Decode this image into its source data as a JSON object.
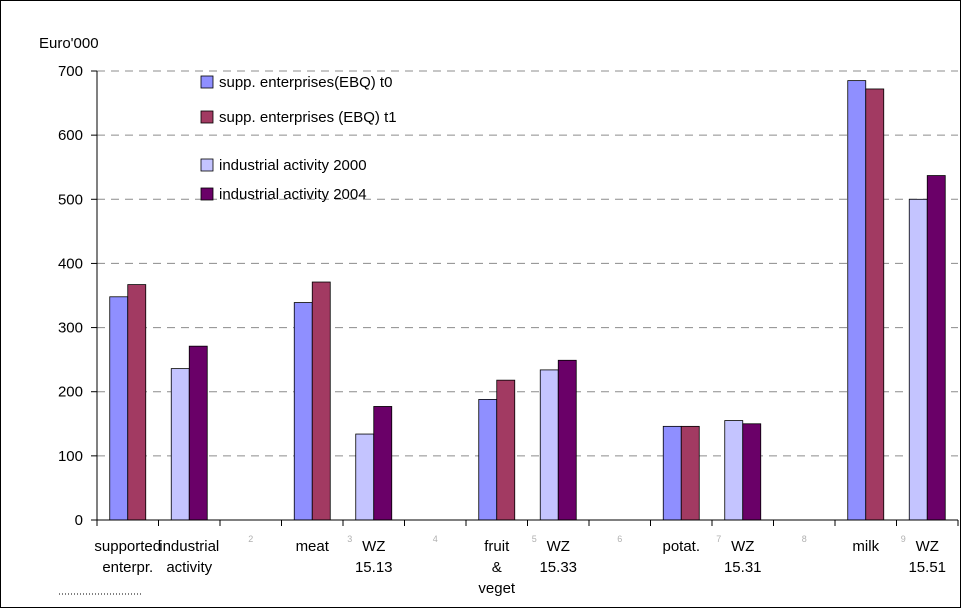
{
  "chart_data": {
    "type": "bar",
    "ylabel": "Euro'000",
    "ylim": [
      0,
      700
    ],
    "yticks": [
      0,
      100,
      200,
      300,
      400,
      500,
      600,
      700
    ],
    "grid": "dashed horizontal",
    "legend_position": "top-left",
    "categories": [
      [
        "supported",
        "enterpr."
      ],
      [
        "industrial",
        "activity"
      ],
      [
        "2"
      ],
      [
        "meat"
      ],
      [
        "3",
        "WZ",
        "15.13"
      ],
      [
        "4"
      ],
      [
        "fruit",
        "&",
        "veget"
      ],
      [
        "5",
        "WZ",
        "15.33"
      ],
      [
        "6"
      ],
      [
        "potat."
      ],
      [
        "7",
        "WZ",
        "15.31"
      ],
      [
        "8"
      ],
      [
        "milk"
      ],
      [
        "9",
        "WZ",
        "15.51"
      ]
    ],
    "category_labels": [
      {
        "small": "",
        "lines": [
          "supported",
          "enterpr."
        ]
      },
      {
        "small": "",
        "lines": [
          "industrial",
          "activity"
        ]
      },
      {
        "small": "2",
        "lines": []
      },
      {
        "small": "",
        "lines": [
          "meat"
        ]
      },
      {
        "small": "3",
        "lines": [
          "WZ",
          "15.13"
        ]
      },
      {
        "small": "4",
        "lines": []
      },
      {
        "small": "",
        "lines": [
          "fruit",
          "&",
          "veget"
        ]
      },
      {
        "small": "5",
        "lines": [
          "WZ",
          "15.33"
        ]
      },
      {
        "small": "6",
        "lines": []
      },
      {
        "small": "",
        "lines": [
          "potat."
        ]
      },
      {
        "small": "7",
        "lines": [
          "WZ",
          "15.31"
        ]
      },
      {
        "small": "8",
        "lines": []
      },
      {
        "small": "",
        "lines": [
          "milk"
        ]
      },
      {
        "small": "9",
        "lines": [
          "WZ",
          "15.51"
        ]
      }
    ],
    "series": [
      {
        "name": "supp. enterprises(EBQ) t0",
        "color": "#8f8fff",
        "values": [
          348,
          null,
          null,
          339,
          null,
          null,
          188,
          null,
          null,
          146,
          null,
          null,
          685,
          null
        ]
      },
      {
        "name": "supp. enterprises (EBQ) t1",
        "color": "#a23a62",
        "values": [
          367,
          null,
          null,
          371,
          null,
          null,
          218,
          null,
          null,
          146,
          null,
          null,
          672,
          null
        ]
      },
      {
        "name": "industrial activity 2000",
        "color": "#c4c4ff",
        "values": [
          null,
          236,
          null,
          null,
          134,
          null,
          null,
          234,
          null,
          null,
          155,
          null,
          null,
          500
        ]
      },
      {
        "name": "industrial activity 2004",
        "color": "#6a0068",
        "values": [
          null,
          271,
          null,
          null,
          177,
          null,
          null,
          249,
          null,
          null,
          150,
          null,
          null,
          537
        ]
      }
    ]
  }
}
